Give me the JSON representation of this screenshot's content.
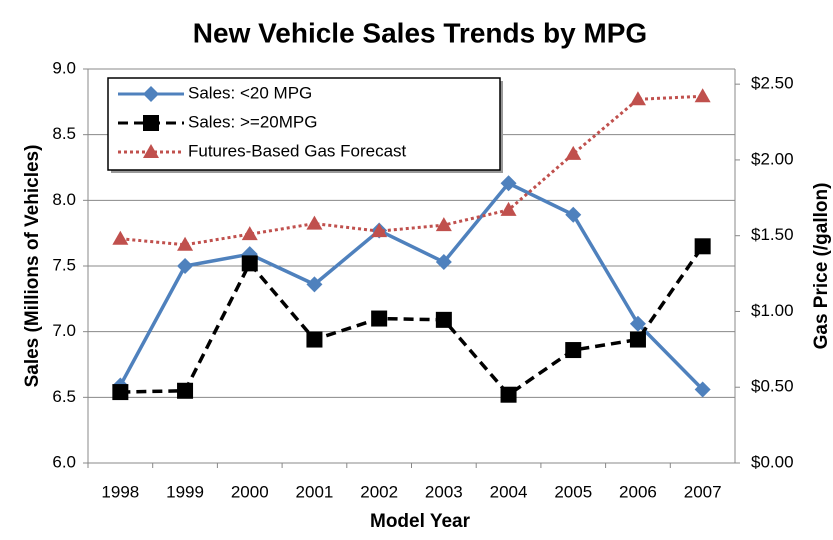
{
  "chart_data": {
    "type": "line",
    "title": "New Vehicle Sales Trends by MPG",
    "x_label": "Model Year",
    "y_label": "Sales (Millions of Vehicles)",
    "y2_label": "Gas Price (/gallon)",
    "categories": [
      "1998",
      "1999",
      "2000",
      "2001",
      "2002",
      "2003",
      "2004",
      "2005",
      "2006",
      "2007"
    ],
    "ylim": [
      6,
      9
    ],
    "yticks": [
      {
        "value": 6,
        "label": "6.0"
      },
      6.5,
      {
        "value": 7,
        "label": "7.0"
      },
      7.5,
      {
        "value": 8,
        "label": "8.0"
      },
      8.5,
      {
        "value": 9,
        "label": "9.0"
      }
    ],
    "y2lim": [
      0,
      2.6
    ],
    "y2ticks": [
      {
        "value": 0,
        "label": "$0.00"
      },
      {
        "value": 0.5,
        "label": "$0.50"
      },
      {
        "value": 1,
        "label": "$1.00"
      },
      {
        "value": 1.5,
        "label": "$1.50"
      },
      {
        "value": 2,
        "label": "$2.00"
      },
      {
        "value": 2.5,
        "label": "$2.50"
      }
    ],
    "grid": true,
    "legend": "top-left",
    "series": [
      {
        "name": "Sales: <20 MPG",
        "color": "#4f81bd",
        "marker": "diamond",
        "dash": "solid",
        "values": [
          6.59,
          7.5,
          7.59,
          7.36,
          7.77,
          7.53,
          8.13,
          7.89,
          7.06,
          6.56
        ]
      },
      {
        "name": "Sales: >=20MPG",
        "color": "#000000",
        "marker": "square",
        "dash": "dashed",
        "values": [
          6.54,
          6.55,
          7.52,
          6.94,
          7.1,
          7.09,
          6.52,
          6.86,
          6.94,
          7.65
        ]
      },
      {
        "name": "Futures-Based Gas Forecast",
        "color": "#c0504d",
        "marker": "triangle",
        "dash": "dotted",
        "axis": "y2",
        "values": [
          1.48,
          1.44,
          1.51,
          1.58,
          1.53,
          1.57,
          1.67,
          2.04,
          2.4,
          2.42
        ]
      }
    ]
  }
}
